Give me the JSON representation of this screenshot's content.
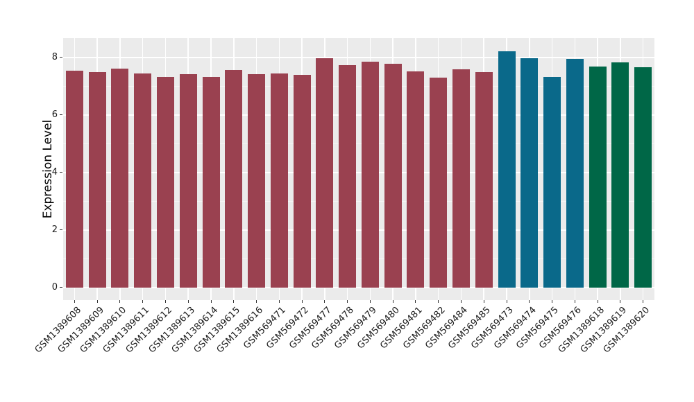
{
  "chart_data": {
    "type": "bar",
    "title": "",
    "xlabel": "",
    "ylabel": "Expression Level",
    "categories": [
      "GSM1389608",
      "GSM1389609",
      "GSM1389610",
      "GSM1389611",
      "GSM1389612",
      "GSM1389613",
      "GSM1389614",
      "GSM1389615",
      "GSM1389616",
      "GSM569471",
      "GSM569472",
      "GSM569477",
      "GSM569478",
      "GSM569479",
      "GSM569480",
      "GSM569481",
      "GSM569482",
      "GSM569484",
      "GSM569485",
      "GSM569473",
      "GSM569474",
      "GSM569475",
      "GSM569476",
      "GSM1389618",
      "GSM1389619",
      "GSM1389620"
    ],
    "values": [
      7.53,
      7.48,
      7.6,
      7.45,
      7.33,
      7.41,
      7.32,
      7.55,
      7.42,
      7.43,
      7.4,
      7.97,
      7.73,
      7.85,
      7.78,
      7.52,
      7.3,
      7.58,
      7.5,
      8.22,
      7.97,
      7.33,
      7.95,
      7.68,
      7.83,
      7.65
    ],
    "groups": [
      "group1",
      "group1",
      "group1",
      "group1",
      "group1",
      "group1",
      "group1",
      "group1",
      "group1",
      "group1",
      "group1",
      "group1",
      "group1",
      "group1",
      "group1",
      "group1",
      "group1",
      "group1",
      "group1",
      "group2",
      "group2",
      "group2",
      "group2",
      "group3",
      "group3",
      "group3"
    ],
    "group_colors": {
      "group1": "#9A4150",
      "group2": "#0A698A",
      "group3": "#006747"
    },
    "yticks_major": [
      0,
      2,
      4,
      6,
      8
    ],
    "yticks_minor": [
      1,
      3,
      5,
      7
    ],
    "ytick_labels": [
      "0",
      "2",
      "4",
      "6",
      "8"
    ],
    "ylim": [
      -0.44,
      8.67
    ],
    "grid": "on",
    "legend": "none",
    "panel_background": "#EBEBEB",
    "gridline_color": "#FFFFFF",
    "figure_background": "#FFFFFF",
    "x_label_rotation_deg": 45
  }
}
